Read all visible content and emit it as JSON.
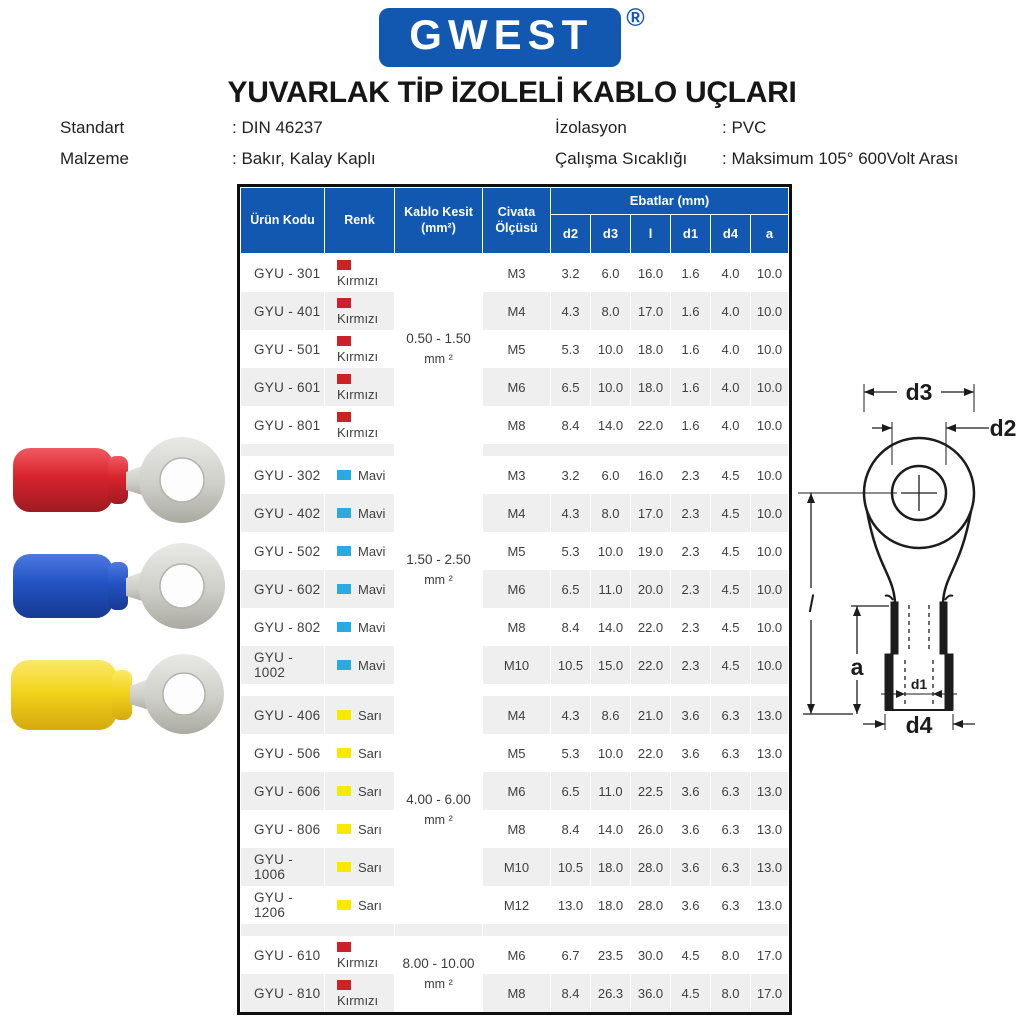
{
  "logo": {
    "text": "GWEST",
    "registered": "®"
  },
  "title": "YUVARLAK TİP İZOLELİ KABLO UÇLARI",
  "specs": [
    {
      "label": "Standart",
      "value": ": DIN 46237"
    },
    {
      "label": "İzolasyon",
      "value": ": PVC"
    },
    {
      "label": "Malzeme",
      "value": ": Bakır, Kalay Kaplı"
    },
    {
      "label": "Çalışma Sıcaklığı",
      "value": ": Maksimum 105° 600Volt Arası"
    }
  ],
  "table": {
    "header": {
      "urun_kodu": "Ürün Kodu",
      "renk": "Renk",
      "kablo_kesit": "Kablo Kesit (mm²)",
      "civata": "Civata Ölçüsü",
      "ebatlar": "Ebatlar (mm)",
      "dims": [
        "d2",
        "d3",
        "l",
        "d1",
        "d4",
        "a"
      ]
    },
    "groups": [
      {
        "kesit_range": "0.50 - 1.50",
        "kesit_unit": "mm ²",
        "color_name": "Kırmızı",
        "swatch": "#cc2127",
        "rows": [
          {
            "code": "GYU - 301",
            "civata": "M3",
            "values": [
              "3.2",
              "6.0",
              "16.0",
              "1.6",
              "4.0",
              "10.0"
            ]
          },
          {
            "code": "GYU - 401",
            "civata": "M4",
            "values": [
              "4.3",
              "8.0",
              "17.0",
              "1.6",
              "4.0",
              "10.0"
            ]
          },
          {
            "code": "GYU - 501",
            "civata": "M5",
            "values": [
              "5.3",
              "10.0",
              "18.0",
              "1.6",
              "4.0",
              "10.0"
            ]
          },
          {
            "code": "GYU - 601",
            "civata": "M6",
            "values": [
              "6.5",
              "10.0",
              "18.0",
              "1.6",
              "4.0",
              "10.0"
            ]
          },
          {
            "code": "GYU - 801",
            "civata": "M8",
            "values": [
              "8.4",
              "14.0",
              "22.0",
              "1.6",
              "4.0",
              "10.0"
            ]
          }
        ]
      },
      {
        "kesit_range": "1.50 - 2.50",
        "kesit_unit": "mm ²",
        "color_name": "Mavi",
        "swatch": "#29abe2",
        "rows": [
          {
            "code": "GYU - 302",
            "civata": "M3",
            "values": [
              "3.2",
              "6.0",
              "16.0",
              "2.3",
              "4.5",
              "10.0"
            ]
          },
          {
            "code": "GYU - 402",
            "civata": "M4",
            "values": [
              "4.3",
              "8.0",
              "17.0",
              "2.3",
              "4.5",
              "10.0"
            ]
          },
          {
            "code": "GYU - 502",
            "civata": "M5",
            "values": [
              "5.3",
              "10.0",
              "19.0",
              "2.3",
              "4.5",
              "10.0"
            ]
          },
          {
            "code": "GYU - 602",
            "civata": "M6",
            "values": [
              "6.5",
              "11.0",
              "20.0",
              "2.3",
              "4.5",
              "10.0"
            ]
          },
          {
            "code": "GYU - 802",
            "civata": "M8",
            "values": [
              "8.4",
              "14.0",
              "22.0",
              "2.3",
              "4.5",
              "10.0"
            ]
          },
          {
            "code": "GYU - 1002",
            "civata": "M10",
            "values": [
              "10.5",
              "15.0",
              "22.0",
              "2.3",
              "4.5",
              "10.0"
            ]
          }
        ]
      },
      {
        "kesit_range": "4.00 - 6.00",
        "kesit_unit": "mm ²",
        "color_name": "Sarı",
        "swatch": "#f7ea00",
        "rows": [
          {
            "code": "GYU - 406",
            "civata": "M4",
            "values": [
              "4.3",
              "8.6",
              "21.0",
              "3.6",
              "6.3",
              "13.0"
            ]
          },
          {
            "code": "GYU - 506",
            "civata": "M5",
            "values": [
              "5.3",
              "10.0",
              "22.0",
              "3.6",
              "6.3",
              "13.0"
            ]
          },
          {
            "code": "GYU - 606",
            "civata": "M6",
            "values": [
              "6.5",
              "11.0",
              "22.5",
              "3.6",
              "6.3",
              "13.0"
            ]
          },
          {
            "code": "GYU - 806",
            "civata": "M8",
            "values": [
              "8.4",
              "14.0",
              "26.0",
              "3.6",
              "6.3",
              "13.0"
            ]
          },
          {
            "code": "GYU - 1006",
            "civata": "M10",
            "values": [
              "10.5",
              "18.0",
              "28.0",
              "3.6",
              "6.3",
              "13.0"
            ]
          },
          {
            "code": "GYU - 1206",
            "civata": "M12",
            "values": [
              "13.0",
              "18.0",
              "28.0",
              "3.6",
              "6.3",
              "13.0"
            ]
          }
        ]
      },
      {
        "kesit_range": "8.00 - 10.00",
        "kesit_unit": "mm ²",
        "color_name": "Kırmızı",
        "swatch": "#cc2127",
        "rows": [
          {
            "code": "GYU - 610",
            "civata": "M6",
            "values": [
              "6.7",
              "23.5",
              "30.0",
              "4.5",
              "8.0",
              "17.0"
            ]
          },
          {
            "code": "GYU - 810",
            "civata": "M8",
            "values": [
              "8.4",
              "26.3",
              "36.0",
              "4.5",
              "8.0",
              "17.0"
            ]
          }
        ]
      }
    ]
  },
  "diagram": {
    "labels": {
      "d3": "d3",
      "d2": "d2",
      "l": "l",
      "a": "a",
      "d1": "d1",
      "d4": "d4"
    }
  },
  "product_images": [
    {
      "name": "red-ring-terminal",
      "sleeve_light": "#f05a60",
      "sleeve": "#d8232e",
      "sleeve_dark": "#9e1a20"
    },
    {
      "name": "blue-ring-terminal",
      "sleeve_light": "#4d7ae0",
      "sleeve": "#2353c4",
      "sleeve_dark": "#173a92"
    },
    {
      "name": "yellow-ring-terminal",
      "sleeve_light": "#fbe969",
      "sleeve": "#f2d41b",
      "sleeve_dark": "#d4a90e"
    }
  ],
  "colors": {
    "accent_blue": "#1257b0",
    "row_alt": "#efefef",
    "table_border": "#0f0f0f",
    "text_dark": "#3f3f3f",
    "swatch_red": "#cc2127",
    "swatch_blue": "#29abe2",
    "swatch_yellow": "#f7ea00"
  }
}
